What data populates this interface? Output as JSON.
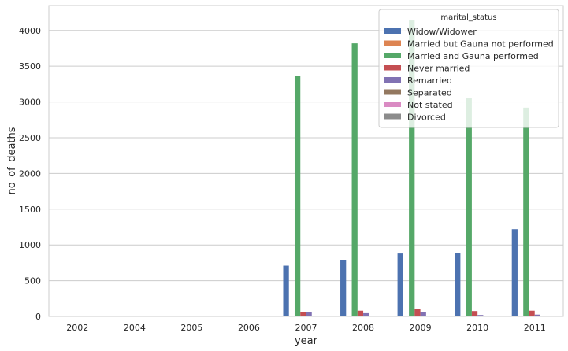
{
  "chart_data": {
    "type": "bar",
    "xlabel": "year",
    "ylabel": "no_of_deaths",
    "categories": [
      "2002",
      "2004",
      "2005",
      "2006",
      "2007",
      "2008",
      "2009",
      "2010",
      "2011"
    ],
    "ylim": [
      0,
      4350
    ],
    "yticks": [
      0,
      500,
      1000,
      1500,
      2000,
      2500,
      3000,
      3500,
      4000
    ],
    "grid": "horizontal",
    "legend": {
      "title": "marital_status",
      "placement": "top-right"
    },
    "series": [
      {
        "name": "Widow/Widower",
        "color": "#4c72b0",
        "values": [
          0,
          0,
          0,
          0,
          710,
          790,
          880,
          890,
          1220
        ]
      },
      {
        "name": "Married but Gauna not performed",
        "color": "#dd8452",
        "values": [
          0,
          0,
          0,
          0,
          0,
          0,
          0,
          0,
          0
        ]
      },
      {
        "name": "Married and Gauna performed",
        "color": "#55a868",
        "values": [
          0,
          0,
          0,
          0,
          3360,
          3820,
          4140,
          3050,
          2920
        ]
      },
      {
        "name": "Never married",
        "color": "#c44e52",
        "values": [
          0,
          0,
          0,
          0,
          65,
          80,
          100,
          75,
          80
        ]
      },
      {
        "name": "Remarried",
        "color": "#8172b3",
        "values": [
          0,
          0,
          0,
          0,
          65,
          45,
          65,
          20,
          25
        ]
      },
      {
        "name": "Separated",
        "color": "#937860",
        "values": [
          0,
          0,
          0,
          0,
          0,
          0,
          0,
          0,
          0
        ]
      },
      {
        "name": "Not stated",
        "color": "#da8bc3",
        "values": [
          0,
          0,
          0,
          0,
          0,
          0,
          0,
          0,
          0
        ]
      },
      {
        "name": "Divorced",
        "color": "#8c8c8c",
        "values": [
          0,
          0,
          0,
          0,
          0,
          0,
          0,
          0,
          0
        ]
      }
    ]
  }
}
